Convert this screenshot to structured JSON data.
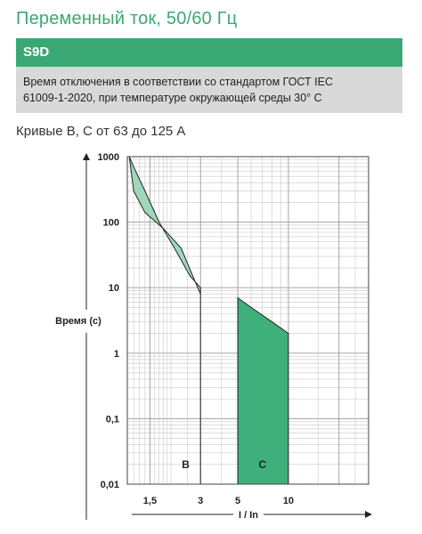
{
  "header": {
    "title": "Переменный ток, 50/60 Гц",
    "badge": "S9D",
    "description_line1": "Время отключения в соответствии со стандартом ГОСТ IEC",
    "description_line2": "61009-1-2020, при температуре окружающей среды 30° С",
    "subtitle": "Кривые B, C от 63 до 125 А"
  },
  "colors": {
    "brand_green": "#3aa874",
    "band_b": "#9fd7bc",
    "band_c": "#3fb07c",
    "header_gray": "#d9d9d9"
  },
  "chart_data": {
    "type": "area",
    "title": "",
    "xlabel": "I / In",
    "ylabel": "Время (с)",
    "x_scale": "log",
    "y_scale": "log",
    "xlim": [
      1.1,
      30
    ],
    "ylim": [
      0.01,
      1000
    ],
    "x_ticks": [
      {
        "value": 1.5,
        "label": "1,5"
      },
      {
        "value": 3,
        "label": "3"
      },
      {
        "value": 5,
        "label": "5"
      },
      {
        "value": 10,
        "label": "10"
      }
    ],
    "y_ticks": [
      {
        "value": 1000,
        "label": "1000"
      },
      {
        "value": 100,
        "label": "100"
      },
      {
        "value": 10,
        "label": "10"
      },
      {
        "value": 1,
        "label": "1"
      },
      {
        "value": 0.1,
        "label": "0,1"
      },
      {
        "value": 0.01,
        "label": "0,01"
      }
    ],
    "grid": true,
    "series": [
      {
        "name": "B",
        "upper_curve": [
          [
            1.13,
            1000
          ],
          [
            1.2,
            700
          ],
          [
            1.4,
            300
          ],
          [
            1.7,
            100
          ],
          [
            2.1,
            40
          ],
          [
            2.6,
            15
          ],
          [
            3,
            10
          ],
          [
            3,
            0.01
          ]
        ],
        "lower_curve": [
          [
            1.13,
            1000
          ],
          [
            1.2,
            300
          ],
          [
            1.4,
            140
          ],
          [
            1.8,
            80
          ],
          [
            2.3,
            40
          ],
          [
            2.8,
            12
          ],
          [
            3,
            8
          ],
          [
            3,
            0.01
          ]
        ],
        "color": "#9fd7bc"
      },
      {
        "name": "C",
        "upper_curve": [
          [
            5,
            7
          ],
          [
            6,
            5
          ],
          [
            8,
            3
          ],
          [
            10,
            2
          ],
          [
            10,
            0.01
          ]
        ],
        "lower_curve": [
          [
            5,
            7
          ],
          [
            5,
            0.01
          ]
        ],
        "color": "#3fb07c"
      }
    ]
  }
}
